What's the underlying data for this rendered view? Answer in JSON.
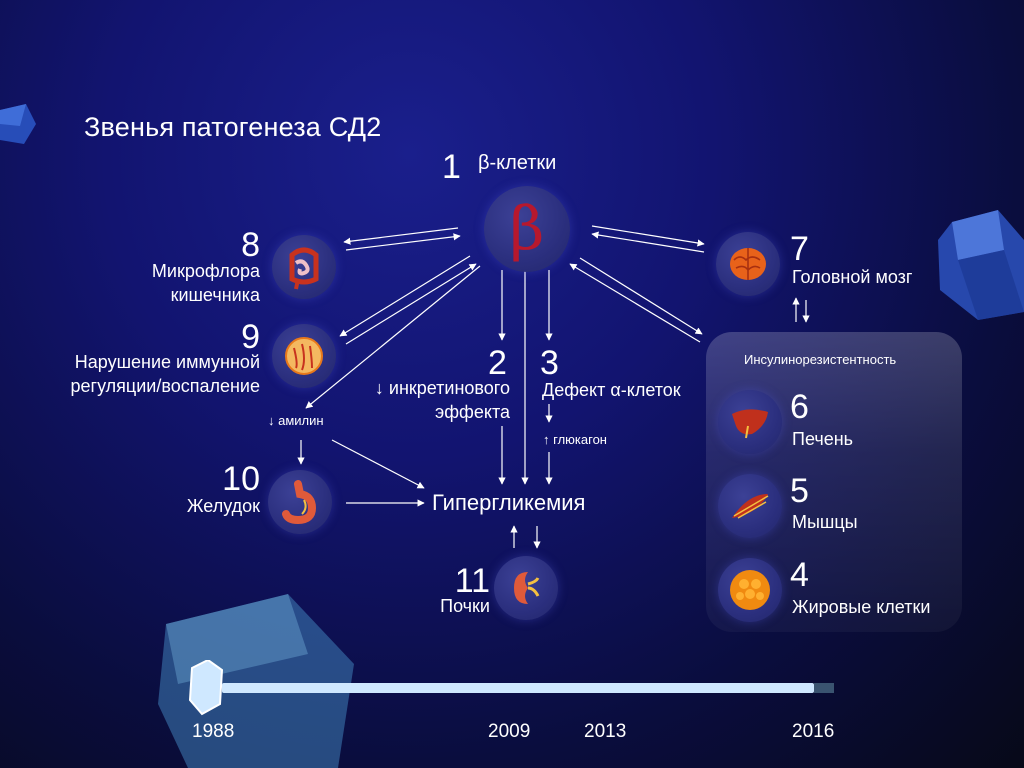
{
  "title": "Звенья патогенеза СД2",
  "nodes": {
    "n1": {
      "number": "1",
      "label": "β-клетки",
      "symbol": "β"
    },
    "n2": {
      "number": "2",
      "line1": "↓ инкретинового",
      "line2": "эффекта"
    },
    "n3": {
      "number": "3",
      "label": "Дефект α-клеток",
      "note": "↑ глюкагон"
    },
    "n4": {
      "number": "4",
      "label": "Жировые клетки"
    },
    "n5": {
      "number": "5",
      "label": "Мышцы"
    },
    "n6": {
      "number": "6",
      "label": "Печень"
    },
    "n7": {
      "number": "7",
      "label": "Головной мозг"
    },
    "n8": {
      "number": "8",
      "line1": "Микрофлора",
      "line2": "кишечника"
    },
    "n9": {
      "number": "9",
      "line1": "Нарушение иммунной",
      "line2": "регуляции/воспаление"
    },
    "n10": {
      "number": "10",
      "label": "Желудок"
    },
    "n11": {
      "number": "11",
      "label": "Почки"
    }
  },
  "amylin": "↓ амилин",
  "hyperglycemia": "Гипергликемия",
  "insulin_resistance": "Инсулинорезистентность",
  "timeline": {
    "years": [
      "1988",
      "2009",
      "2013",
      "2016"
    ]
  },
  "colors": {
    "background": "#121470",
    "beta_symbol": "#b7182d",
    "timeline": "#cfe8ff",
    "organ_red": "#c8321e",
    "organ_orange": "#e8781a"
  },
  "icons": [
    "beta-cell-icon",
    "brain-icon",
    "intestine-icon",
    "immune-cell-icon",
    "stomach-icon",
    "kidney-icon",
    "liver-icon",
    "muscle-icon",
    "fat-cells-icon"
  ]
}
